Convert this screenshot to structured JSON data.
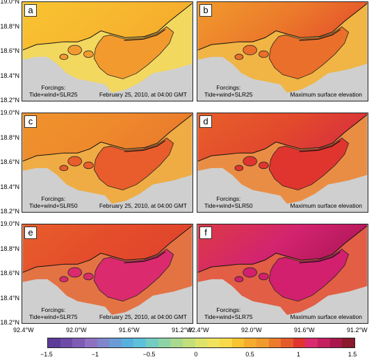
{
  "panels": [
    {
      "letter": "a",
      "forcing": [
        "Forcings:",
        "Tide+wind+SLR25"
      ],
      "note": "February 25, 2010, at 04:00 GMT",
      "sea": [
        "#f8c431",
        "#f7b830",
        "#f6ac2c"
      ],
      "bay": "#f29a2e",
      "land": "#f8d94a"
    },
    {
      "letter": "b",
      "forcing": [
        "Forcings:",
        "Tide+wind+SLR25"
      ],
      "note": "Maximum surface elevation",
      "sea": [
        "#f19a2d",
        "#ec7b2b",
        "#e5552b"
      ],
      "bay": "#ea6f2b",
      "land": "#f6b02c"
    },
    {
      "letter": "c",
      "forcing": [
        "Forcings:",
        "Tide+wind+SLR50"
      ],
      "note": "February 25, 2010, at 04:00 GMT",
      "sea": [
        "#f0932d",
        "#ee892c",
        "#ea7a2b"
      ],
      "bay": "#e85d2b",
      "land": "#f4a62c"
    },
    {
      "letter": "d",
      "forcing": [
        "Forcings:",
        "Tide+wind+SLR50"
      ],
      "note": "Maximum surface elevation",
      "sea": [
        "#e8602b",
        "#e24a2c",
        "#d9313c"
      ],
      "bay": "#e0352f",
      "land": "#ee812c"
    },
    {
      "letter": "e",
      "forcing": [
        "Forcings:",
        "Tide+wind+SLR75"
      ],
      "note": "February 25, 2010, at 04:00 GMT",
      "sea": [
        "#e85e2b",
        "#e44d2b",
        "#e0442c"
      ],
      "bay": "#db2a6e",
      "land": "#e8632b"
    },
    {
      "letter": "f",
      "forcing": [
        "Forcings:",
        "Tide+wind+SLR75"
      ],
      "note": "Maximum surface elevation",
      "sea": [
        "#db3a45",
        "#d3246f",
        "#b2175a"
      ],
      "bay": "#d2206f",
      "land": "#e54a2c"
    }
  ],
  "y_axis_labels": [
    "19.0°N",
    "18.8°N",
    "18.6°N",
    "18.4°N",
    "18.2°N"
  ],
  "x_axis_labels": [
    "92.4°W",
    "92.0°W",
    "91.6°W",
    "91.2°W"
  ],
  "colorbar": {
    "ticks": [
      "−1.5",
      "−1",
      "−0.5",
      "0",
      "0.5",
      "1",
      "1.5"
    ],
    "colors": [
      "#5b3c99",
      "#6e4aa8",
      "#7f5bb5",
      "#8f71c1",
      "#7f86cc",
      "#6a9bd6",
      "#57b0dd",
      "#5dc2d9",
      "#73ccc0",
      "#8ed3a6",
      "#a8d98d",
      "#c3df7a",
      "#dde36a",
      "#f0e35d",
      "#f8d94a",
      "#f8c431",
      "#f6ac2c",
      "#f19a2d",
      "#ec7b2b",
      "#e55a2b",
      "#e0352f",
      "#db2a6e",
      "#c41f5e",
      "#a8184d",
      "#8a1a2c"
    ]
  },
  "colors": {
    "land_gray": "#cfcfcf"
  }
}
